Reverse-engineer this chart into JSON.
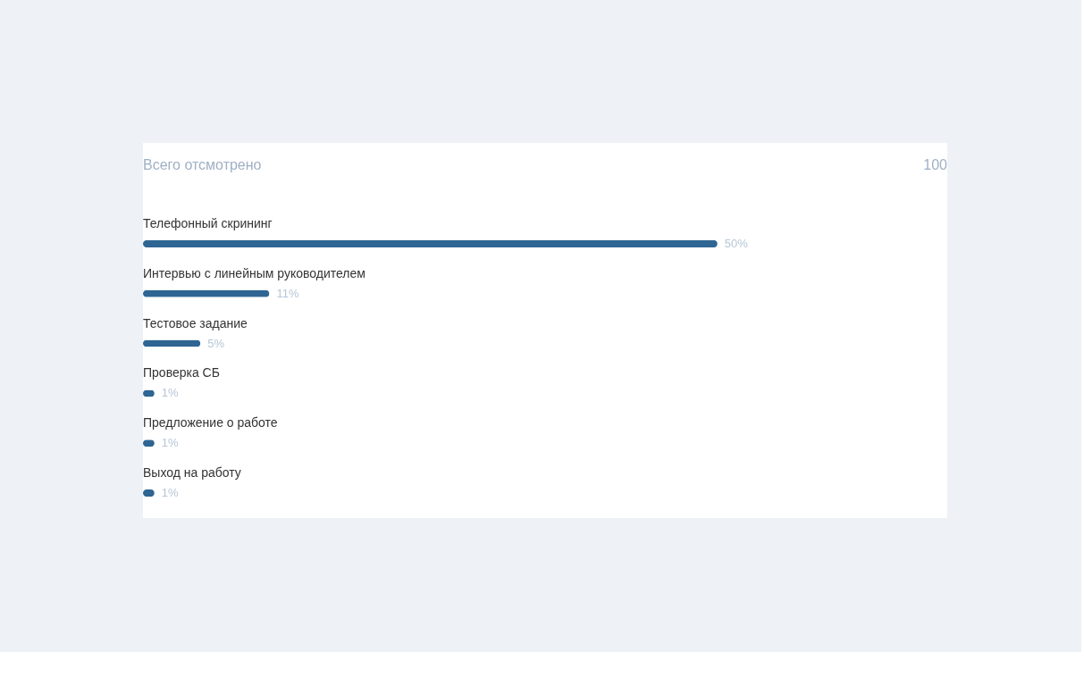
{
  "chart_data": {
    "type": "bar",
    "orientation": "horizontal",
    "title": "Всего отсмотрено",
    "annotations": [
      "100"
    ],
    "categories": [
      "Телефонный скрининг",
      "Интервью с линейным руководителем",
      "Тестовое задание",
      "Проверка СБ",
      "Предложение о работе",
      "Выход на работу"
    ],
    "values": [
      50,
      11,
      5,
      1,
      1,
      1
    ],
    "value_labels": [
      "50%",
      "11%",
      "5%",
      "1%",
      "1%",
      "1%"
    ],
    "color": "#2e6592"
  }
}
